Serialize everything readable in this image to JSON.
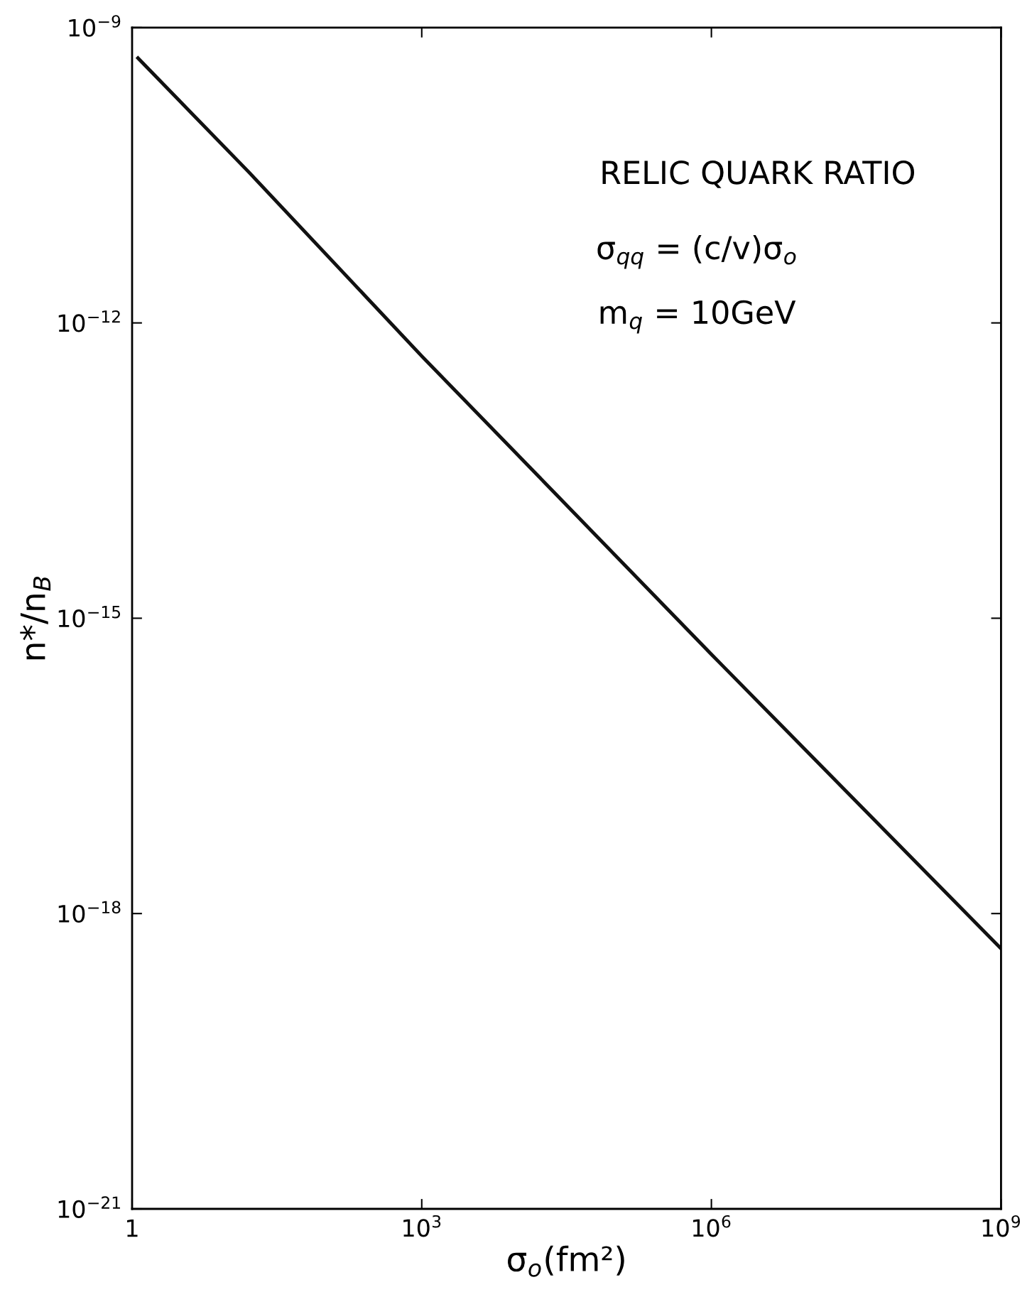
{
  "chart_data": {
    "type": "line",
    "xlabel": "σ$_{o}$(fm²)",
    "ylabel": "n*/n$_{B}$",
    "log": "xy",
    "grid": false,
    "legend": false,
    "marker": "none",
    "line_style": "solid",
    "xlim": [
      1,
      1000000000.0
    ],
    "ylim": [
      1e-21,
      1e-09
    ],
    "xticks": [
      1,
      {
        "value": 1000,
        "label": "10$^{3}$"
      },
      {
        "value": 1000000,
        "label": "10$^{6}$"
      },
      {
        "value": 1000000000,
        "label": "10$^{9}$"
      }
    ],
    "yticks": [
      {
        "value": 1e-21,
        "label": "10$^{−21}$"
      },
      {
        "value": 1e-18,
        "label": "10$^{−18}$"
      },
      {
        "value": 1e-15,
        "label": "10$^{−15}$"
      },
      {
        "value": 1e-12,
        "label": "10$^{−12}$"
      },
      {
        "value": 1e-09,
        "label": "10$^{−9}$"
      }
    ],
    "annotations": [
      "RELIC QUARK RATIO",
      "σ$_{qq}$ = (c/v)σ$_{o}$",
      "m$_{q}$ = 10GeV"
    ],
    "series": [
      {
        "color": "#111111",
        "x": [
          1.15,
          16.2,
          1000,
          1000000,
          1000000000
        ],
        "values": [
          4.9e-10,
          3.4e-11,
          4.6e-13,
          4.3e-16,
          4.4e-19
        ]
      }
    ]
  }
}
